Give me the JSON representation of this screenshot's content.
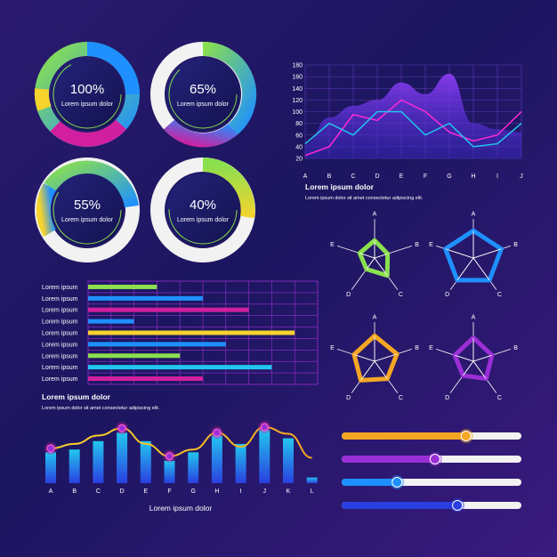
{
  "colors": {
    "background_dark": "#1c1660",
    "green": "#8be04e",
    "blue": "#1e90ff",
    "cyan": "#22c6f0",
    "magenta": "#d21fa0",
    "yellow": "#f6d32d",
    "orange": "#f5a623",
    "purple": "#7a2fd6",
    "white": "#f2f2f2"
  },
  "donuts": [
    {
      "value": "100%",
      "label": "Lorem ipsum dolor",
      "fraction": 1.0
    },
    {
      "value": "65%",
      "label": "Lorem ipsum dolor",
      "fraction": 0.65
    },
    {
      "value": "55%",
      "label": "Lorem ipsum dolor",
      "fraction": 0.55
    },
    {
      "value": "40%",
      "label": "Lorem ipsum dolor",
      "fraction": 0.4
    }
  ],
  "line_chart_caption": {
    "title": "Lorem ipsum dolor",
    "text": "Lorem  ipsum  dolor  sit  amet consectetur adipiscing elit."
  },
  "hbar_caption": {
    "title": "Lorem ipsum dolor",
    "text": "Lorem  ipsum  dolor  sit  amet consectetur adipiscing elit."
  },
  "bottom_caption": {
    "title": "Lorem ipsum dolor"
  },
  "chart_data": [
    {
      "type": "line",
      "categories": [
        "A",
        "B",
        "C",
        "D",
        "E",
        "F",
        "G",
        "H",
        "I",
        "J"
      ],
      "ylim": [
        20,
        180
      ],
      "yticks": [
        20,
        40,
        60,
        80,
        100,
        120,
        140,
        160,
        180
      ],
      "area": [
        45,
        90,
        110,
        120,
        150,
        130,
        165,
        80,
        70,
        65
      ],
      "series": [
        {
          "color": "#ff2ad4",
          "values": [
            25,
            40,
            95,
            85,
            120,
            100,
            65,
            50,
            60,
            100
          ]
        },
        {
          "color": "#22c6f0",
          "values": [
            45,
            80,
            60,
            100,
            100,
            60,
            80,
            40,
            45,
            80
          ]
        }
      ]
    },
    {
      "type": "bar",
      "orientation": "horizontal",
      "categories": [
        "Lorem ipsum",
        "Lorem ipsum",
        "Lorem ipsum",
        "Lorem ipsum",
        "Lorem ipsum",
        "Lorem ipsum",
        "Lorem ipsum",
        "Lorem ipsum",
        "Lorem ipsum"
      ],
      "values": [
        3,
        5,
        7,
        2,
        9,
        6,
        4,
        8,
        5
      ],
      "xlim": [
        0,
        10
      ],
      "colors": [
        "#8be04e",
        "#1e90ff",
        "#d21fa0",
        "#1e90ff",
        "#f6d32d",
        "#1e90ff",
        "#8be04e",
        "#22c6f0",
        "#d21fa0"
      ]
    },
    {
      "type": "radar",
      "axes": [
        "A",
        "B",
        "C",
        "D",
        "E"
      ],
      "charts": [
        {
          "color": "#8be04e",
          "values": [
            0.45,
            0.35,
            0.55,
            0.35,
            0.4
          ]
        },
        {
          "color": "#1e90ff",
          "values": [
            0.7,
            0.75,
            0.7,
            0.7,
            0.75
          ]
        },
        {
          "color": "#f5a623",
          "values": [
            0.65,
            0.6,
            0.55,
            0.6,
            0.55
          ]
        },
        {
          "color": "#9b2fd6",
          "values": [
            0.6,
            0.5,
            0.55,
            0.45,
            0.5
          ]
        }
      ]
    },
    {
      "type": "bar",
      "categories": [
        "A",
        "B",
        "C",
        "D",
        "E",
        "F",
        "G",
        "H",
        "I",
        "J",
        "K",
        "L"
      ],
      "values": [
        55,
        60,
        75,
        90,
        75,
        40,
        55,
        85,
        70,
        95,
        80,
        10
      ],
      "ylim": [
        0,
        100
      ],
      "line": [
        62,
        70,
        85,
        98,
        70,
        48,
        60,
        90,
        65,
        100,
        88,
        45
      ]
    },
    {
      "type": "slider",
      "tracks": [
        {
          "fraction": 0.7,
          "color": "#f5a623"
        },
        {
          "fraction": 0.52,
          "color": "#9b2fd6"
        },
        {
          "fraction": 0.3,
          "color": "#1e90ff"
        },
        {
          "fraction": 0.65,
          "color": "#2a3fe0"
        }
      ]
    }
  ]
}
